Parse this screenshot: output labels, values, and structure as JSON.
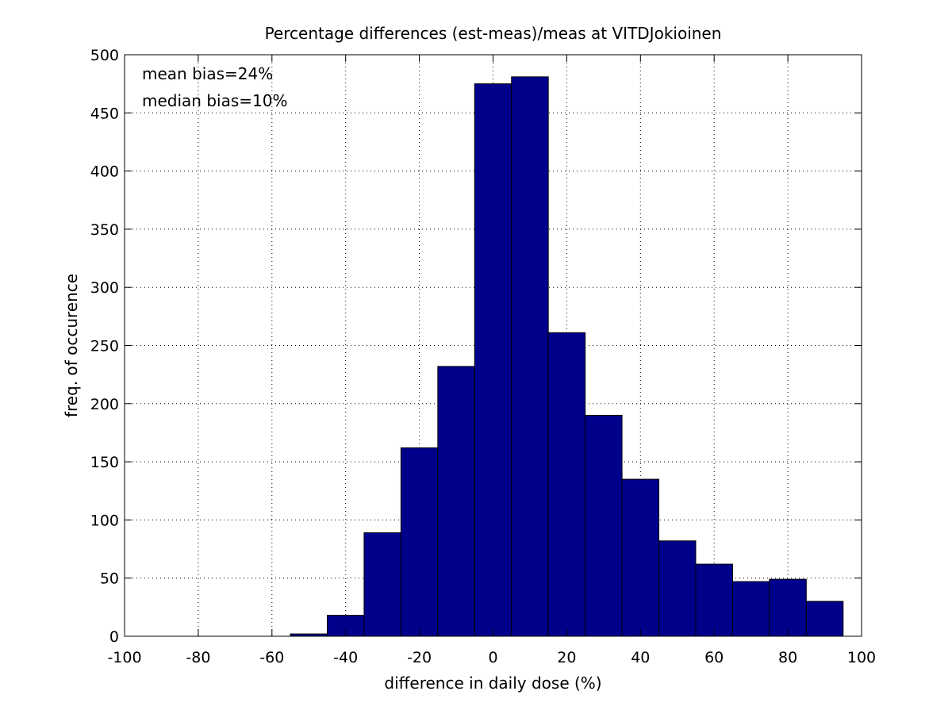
{
  "chart_data": {
    "type": "bar",
    "title": "Percentage differences (est-meas)/meas at VITDJokioinen",
    "xlabel": "difference in daily dose (%)",
    "ylabel": "freq. of occurence",
    "xlim": [
      -100,
      100
    ],
    "ylim": [
      0,
      500
    ],
    "xticks": [
      -100,
      -80,
      -60,
      -40,
      -20,
      0,
      20,
      40,
      60,
      80,
      100
    ],
    "yticks": [
      0,
      50,
      100,
      150,
      200,
      250,
      300,
      350,
      400,
      450,
      500
    ],
    "grid": true,
    "bar_width": 10,
    "bar_color": "#00008B",
    "bin_centers": [
      -50,
      -40,
      -30,
      -20,
      -10,
      0,
      10,
      20,
      30,
      40,
      50,
      60,
      70,
      80,
      90
    ],
    "values": [
      2,
      18,
      89,
      162,
      232,
      475,
      481,
      261,
      190,
      135,
      82,
      62,
      47,
      49,
      30
    ],
    "annotations": [
      "mean bias=24%",
      "median bias=10%"
    ]
  }
}
